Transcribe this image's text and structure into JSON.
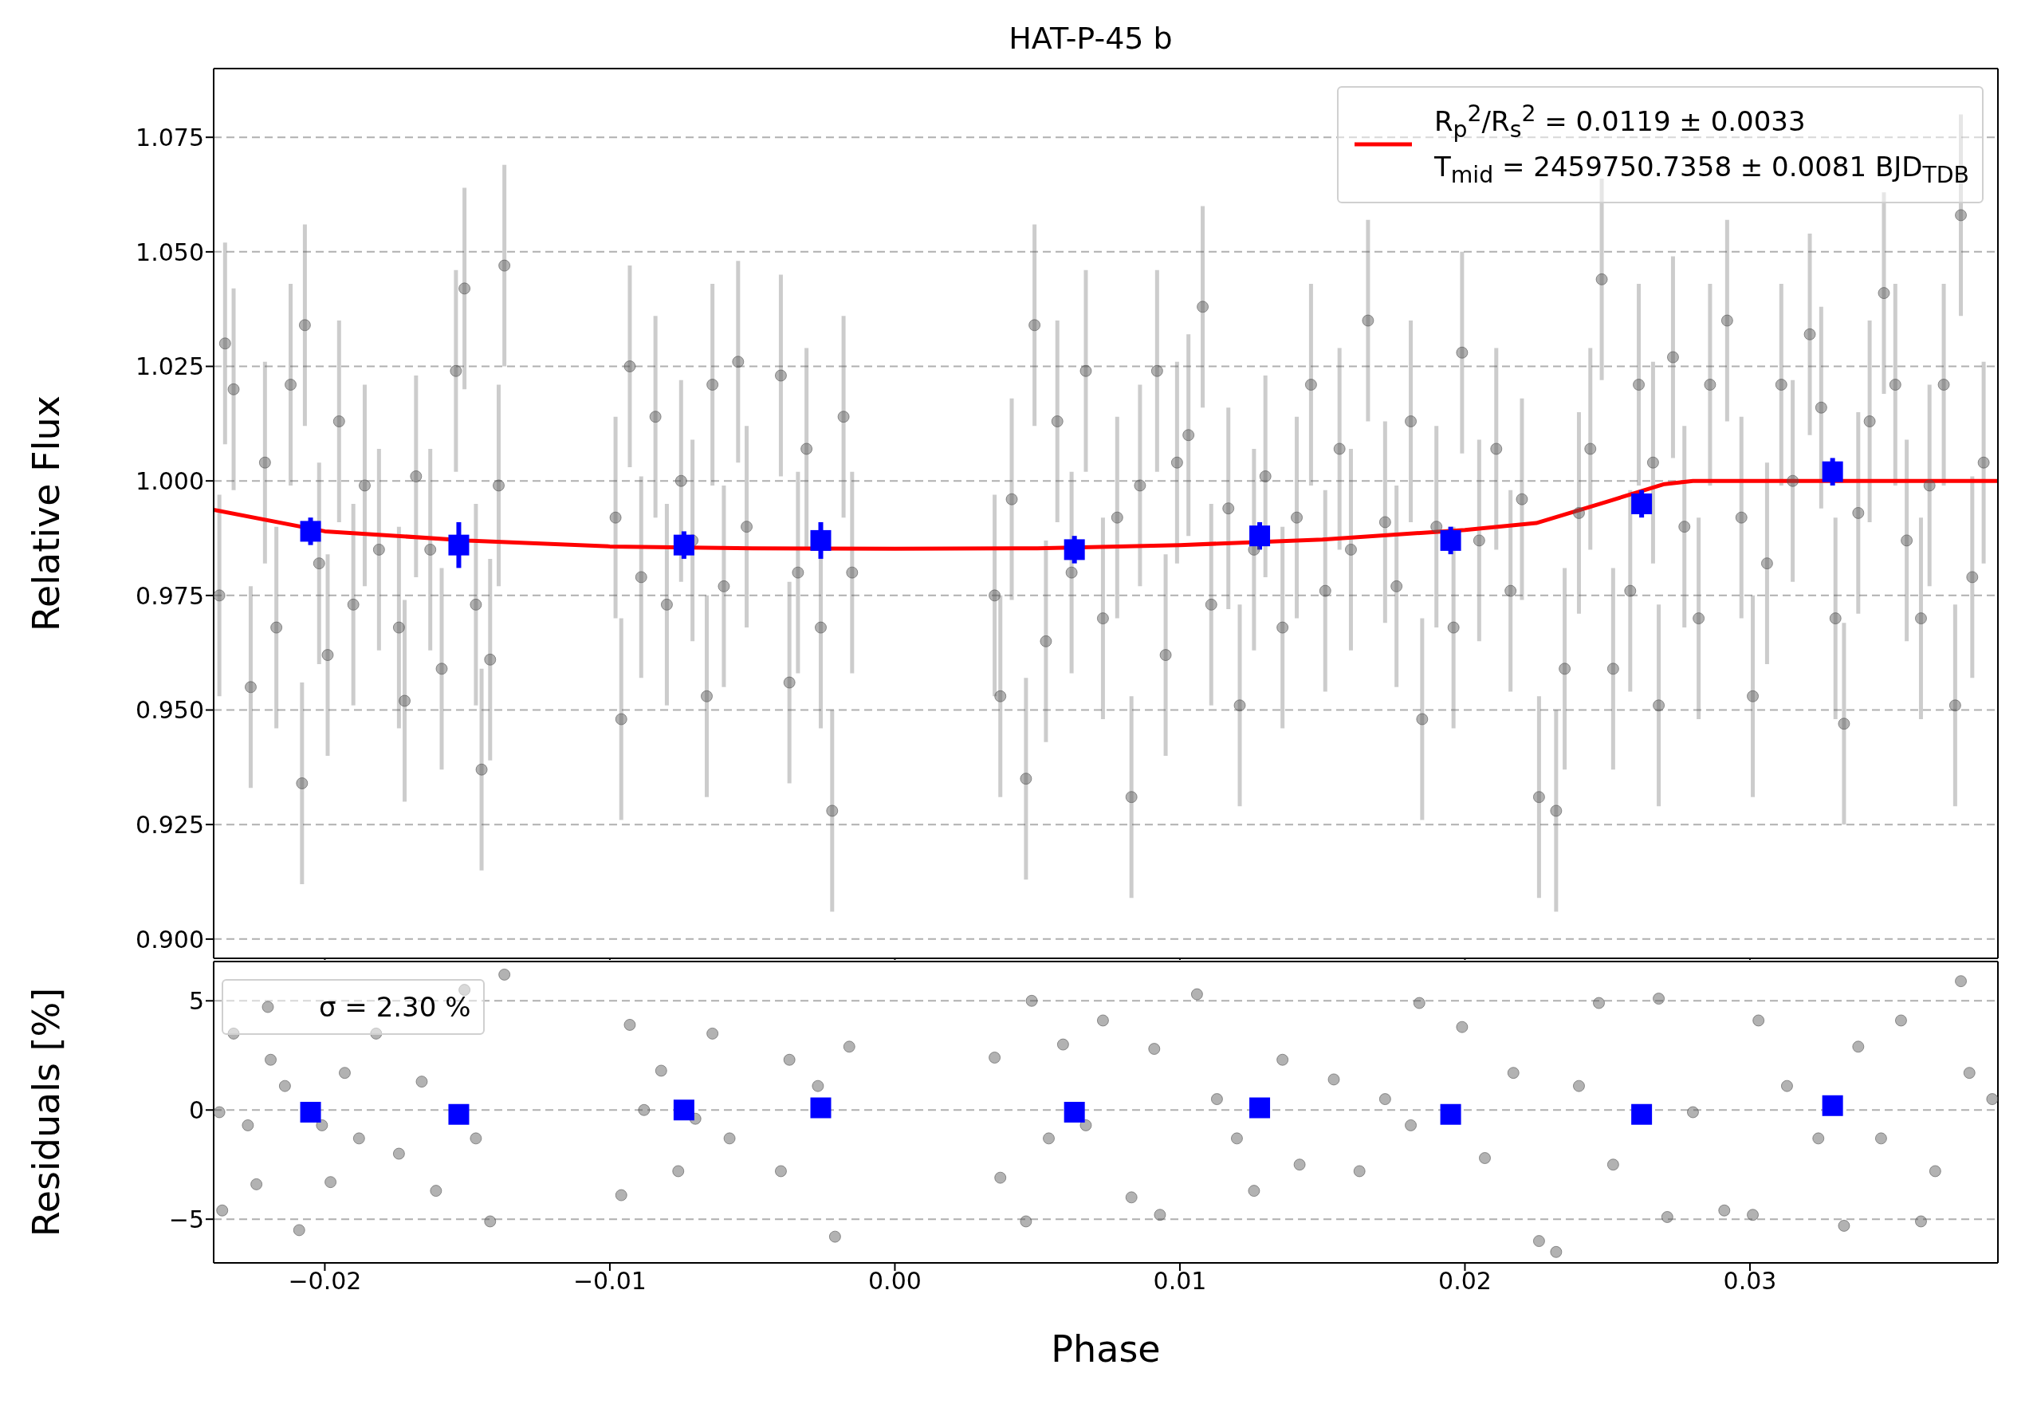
{
  "chart_data": [
    {
      "type": "scatter",
      "title": "HAT-P-45 b",
      "ylabel": "Relative Flux",
      "xlim": [
        -0.0239,
        0.0387
      ],
      "xticks": [
        -0.02,
        -0.01,
        0.0,
        0.01,
        0.02,
        0.03
      ],
      "ylim": [
        0.8958,
        1.09
      ],
      "yticks": [
        {
          "value": 0.9,
          "label": "0.900"
        },
        0.925,
        {
          "value": 0.95,
          "label": "0.950"
        },
        0.975,
        {
          "value": 1.0,
          "label": "1.000"
        },
        1.025,
        {
          "value": 1.05,
          "label": "1.050"
        },
        1.075
      ],
      "grid": "y",
      "legend": "top right",
      "tick_labels": "y",
      "series": [
        {
          "color": "#555555",
          "marker": "circle",
          "x": [
            -0.0237,
            -0.0235,
            -0.0232,
            -0.0226,
            -0.0221,
            -0.0217,
            -0.0212,
            -0.0208,
            -0.0207,
            -0.0202,
            -0.0199,
            -0.0195,
            -0.019,
            -0.0186,
            -0.0181,
            -0.0174,
            -0.0172,
            -0.0168,
            -0.0163,
            -0.0159,
            -0.0154,
            -0.0151,
            -0.0147,
            -0.0145,
            -0.0142,
            -0.0139,
            -0.0137,
            -0.0098,
            -0.0096,
            -0.0093,
            -0.0089,
            -0.0084,
            -0.008,
            -0.0075,
            -0.0071,
            -0.0066,
            -0.0064,
            -0.006,
            -0.0055,
            -0.0052,
            -0.004,
            -0.0037,
            -0.0034,
            -0.0031,
            -0.0026,
            -0.0022,
            -0.0018,
            -0.0015,
            0.0035,
            0.0037,
            0.0041,
            0.0046,
            0.0049,
            0.0053,
            0.0057,
            0.0062,
            0.0067,
            0.0073,
            0.0078,
            0.0083,
            0.0086,
            0.0092,
            0.0095,
            0.0099,
            0.0103,
            0.0108,
            0.0111,
            0.0117,
            0.0121,
            0.0126,
            0.013,
            0.0136,
            0.0141,
            0.0146,
            0.0151,
            0.0156,
            0.016,
            0.0166,
            0.0172,
            0.0176,
            0.0181,
            0.0185,
            0.019,
            0.0196,
            0.0199,
            0.0205,
            0.0211,
            0.0216,
            0.022,
            0.0226,
            0.0232,
            0.0235,
            0.024,
            0.0244,
            0.0248,
            0.0252,
            0.0258,
            0.0261,
            0.0266,
            0.0268,
            0.0273,
            0.0277,
            0.0282,
            0.0286,
            0.0292,
            0.0297,
            0.0301,
            0.0306,
            0.0311,
            0.0315,
            0.0321,
            0.0325,
            0.033,
            0.0333,
            0.0338,
            0.0342,
            0.0347,
            0.0351,
            0.0355,
            0.036,
            0.0363,
            0.0368,
            0.0372,
            0.0374,
            0.0378,
            0.0382
          ],
          "values": [
            0.975,
            1.03,
            1.02,
            0.955,
            1.004,
            0.968,
            1.021,
            0.934,
            1.034,
            0.982,
            0.962,
            1.013,
            0.973,
            0.999,
            0.985,
            0.968,
            0.952,
            1.001,
            0.985,
            0.959,
            1.024,
            1.042,
            0.973,
            0.937,
            0.961,
            0.999,
            1.047,
            0.992,
            0.948,
            1.025,
            0.979,
            1.014,
            0.973,
            1.0,
            0.987,
            0.953,
            1.021,
            0.977,
            1.026,
            0.99,
            1.023,
            0.956,
            0.98,
            1.007,
            0.968,
            0.928,
            1.014,
            0.98,
            0.975,
            0.953,
            0.996,
            0.935,
            1.034,
            0.965,
            1.013,
            0.98,
            1.024,
            0.97,
            0.992,
            0.931,
            0.999,
            1.024,
            0.962,
            1.004,
            1.01,
            1.038,
            0.973,
            0.994,
            0.951,
            0.985,
            1.001,
            0.968,
            0.992,
            1.021,
            0.976,
            1.007,
            0.985,
            1.035,
            0.991,
            0.977,
            1.013,
            0.948,
            0.99,
            0.968,
            1.028,
            0.987,
            1.007,
            0.976,
            0.996,
            0.931,
            0.928,
            0.959,
            0.993,
            1.007,
            1.044,
            0.959,
            0.976,
            1.021,
            1.004,
            0.951,
            1.027,
            0.99,
            0.97,
            1.021,
            1.035,
            0.992,
            0.953,
            0.982,
            1.021,
            1.0,
            1.032,
            1.016,
            0.97,
            0.947,
            0.993,
            1.013,
            1.041,
            1.021,
            0.987,
            0.97,
            0.999,
            1.021,
            0.951,
            1.058,
            0.979,
            1.004
          ],
          "errors": [
            0.022,
            0.022,
            0.022,
            0.022,
            0.022,
            0.022,
            0.022,
            0.022,
            0.022,
            0.022,
            0.022,
            0.022,
            0.022,
            0.022,
            0.022,
            0.022,
            0.022,
            0.022,
            0.022,
            0.022,
            0.022,
            0.022,
            0.022,
            0.022,
            0.022,
            0.022,
            0.022,
            0.022,
            0.022,
            0.022,
            0.022,
            0.022,
            0.022,
            0.022,
            0.022,
            0.022,
            0.022,
            0.022,
            0.022,
            0.022,
            0.022,
            0.022,
            0.022,
            0.022,
            0.022,
            0.022,
            0.022,
            0.022,
            0.022,
            0.022,
            0.022,
            0.022,
            0.022,
            0.022,
            0.022,
            0.022,
            0.022,
            0.022,
            0.022,
            0.022,
            0.022,
            0.022,
            0.022,
            0.022,
            0.022,
            0.022,
            0.022,
            0.022,
            0.022,
            0.022,
            0.022,
            0.022,
            0.022,
            0.022,
            0.022,
            0.022,
            0.022,
            0.022,
            0.022,
            0.022,
            0.022,
            0.022,
            0.022,
            0.022,
            0.022,
            0.022,
            0.022,
            0.022,
            0.022,
            0.022,
            0.022,
            0.022,
            0.022,
            0.022,
            0.022,
            0.022,
            0.022,
            0.022,
            0.022,
            0.022,
            0.022,
            0.022,
            0.022,
            0.022,
            0.022,
            0.022,
            0.022,
            0.022,
            0.022,
            0.022,
            0.022,
            0.022,
            0.022,
            0.022,
            0.022,
            0.022,
            0.022,
            0.022,
            0.022,
            0.022,
            0.022,
            0.022,
            0.022,
            0.022,
            0.022,
            0.022
          ]
        },
        {
          "color": "#0000ff",
          "marker": "square",
          "x": [
            -0.0205,
            -0.0153,
            -0.0074,
            -0.0026,
            0.0063,
            0.0128,
            0.0195,
            0.0262,
            0.0329
          ],
          "values": [
            0.989,
            0.986,
            0.986,
            0.987,
            0.985,
            0.988,
            0.987,
            0.995,
            1.002
          ],
          "errors": [
            0.003,
            0.005,
            0.003,
            0.004,
            0.003,
            0.003,
            0.003,
            0.003,
            0.003
          ]
        },
        {
          "type": "line",
          "color": "#ff0000",
          "name": "R$_{p}$$^{2}$/R$_{s}$$^{2}$ = 0.0119 ± 0.0033\nT$_{mid}$ = 2459750.7358 ± 0.0081 BJD$_{TDB}$",
          "x": [
            -0.0239,
            -0.02,
            -0.015,
            -0.01,
            -0.005,
            0.0,
            0.005,
            0.01,
            0.015,
            0.02,
            0.0225,
            0.025,
            0.027,
            0.028,
            0.0387
          ],
          "values": [
            0.9937,
            0.989,
            0.987,
            0.9857,
            0.9853,
            0.9852,
            0.9853,
            0.986,
            0.9872,
            0.9893,
            0.9908,
            0.9955,
            0.9993,
            1.0,
            1.0
          ]
        }
      ]
    },
    {
      "type": "scatter",
      "xlabel": "Phase",
      "ylabel": "Residuals [%]",
      "xlim": [
        -0.0239,
        0.0387
      ],
      "xticks": [
        {
          "value": -0.02,
          "label": "−0.02"
        },
        {
          "value": -0.01,
          "label": "−0.01"
        },
        {
          "value": 0.0,
          "label": "0.00"
        },
        {
          "value": 0.01,
          "label": "0.01"
        },
        {
          "value": 0.02,
          "label": "0.02"
        },
        {
          "value": 0.03,
          "label": "0.03"
        }
      ],
      "ylim": [
        -7,
        6.8
      ],
      "yticks": [
        {
          "value": -5,
          "label": "−5"
        },
        0,
        5
      ],
      "grid": "y",
      "legend": "top left",
      "series": [
        {
          "color": "#555555",
          "marker": "circle",
          "name": "σ = 2.30 %",
          "x": [
            -0.0237,
            -0.0236,
            -0.0232,
            -0.0227,
            -0.0224,
            -0.0219,
            -0.0214,
            -0.0209,
            -0.0201,
            -0.0198,
            -0.0193,
            -0.0188,
            -0.0182,
            -0.0174,
            -0.0166,
            -0.0161,
            -0.0151,
            -0.0147,
            -0.0142,
            -0.0137,
            -0.0096,
            -0.0093,
            -0.0088,
            -0.0082,
            -0.0076,
            -0.007,
            -0.0064,
            -0.0058,
            -0.004,
            -0.0037,
            -0.0027,
            -0.0021,
            -0.0016,
            0.0035,
            0.0037,
            0.0046,
            0.0048,
            0.0054,
            0.0059,
            0.0067,
            0.0073,
            0.0083,
            0.0091,
            0.0093,
            0.0106,
            0.0113,
            0.012,
            0.0126,
            0.0136,
            0.0142,
            0.0154,
            0.0163,
            0.0172,
            0.0181,
            0.0184,
            0.0199,
            0.0207,
            0.0217,
            0.0226,
            0.0232,
            0.024,
            0.0247,
            0.0252,
            0.0268,
            0.0271,
            0.028,
            0.0291,
            0.0301,
            0.0303,
            0.0313,
            0.0324,
            0.0333,
            0.0338,
            0.0346,
            0.0353,
            0.036,
            0.0365,
            0.0374,
            0.0377,
            0.0385
          ],
          "values": [
            -0.1,
            -4.6,
            3.5,
            -0.7,
            -3.4,
            2.3,
            1.1,
            -5.5,
            -0.7,
            -3.3,
            1.7,
            -1.3,
            3.5,
            -2.0,
            1.3,
            -3.7,
            5.5,
            -1.3,
            -5.1,
            6.2,
            -3.9,
            3.9,
            0.0,
            1.8,
            -2.8,
            -0.4,
            3.5,
            -1.3,
            -2.8,
            2.3,
            1.1,
            -5.8,
            2.9,
            2.4,
            -3.1,
            -5.1,
            5.0,
            -1.3,
            3.0,
            -0.7,
            4.1,
            -4.0,
            2.8,
            -4.8,
            5.3,
            0.5,
            -1.3,
            -3.7,
            2.3,
            -2.5,
            1.4,
            -2.8,
            0.5,
            -0.7,
            4.9,
            3.8,
            -2.2,
            1.7,
            -6.0,
            -6.5,
            1.1,
            4.9,
            -2.5,
            5.1,
            -4.9,
            -0.1,
            -4.6,
            -4.8,
            4.1,
            1.1,
            -1.3,
            -5.3,
            2.9,
            -1.3,
            4.1,
            -5.1,
            -2.8,
            5.9,
            1.7,
            0.5
          ]
        },
        {
          "color": "#0000ff",
          "marker": "square",
          "x": [
            -0.0205,
            -0.0153,
            -0.0074,
            -0.0026,
            0.0063,
            0.0128,
            0.0195,
            0.0262,
            0.0329
          ],
          "values": [
            -0.1,
            -0.2,
            0.0,
            0.1,
            -0.1,
            0.1,
            -0.2,
            -0.2,
            0.2
          ]
        }
      ]
    }
  ]
}
